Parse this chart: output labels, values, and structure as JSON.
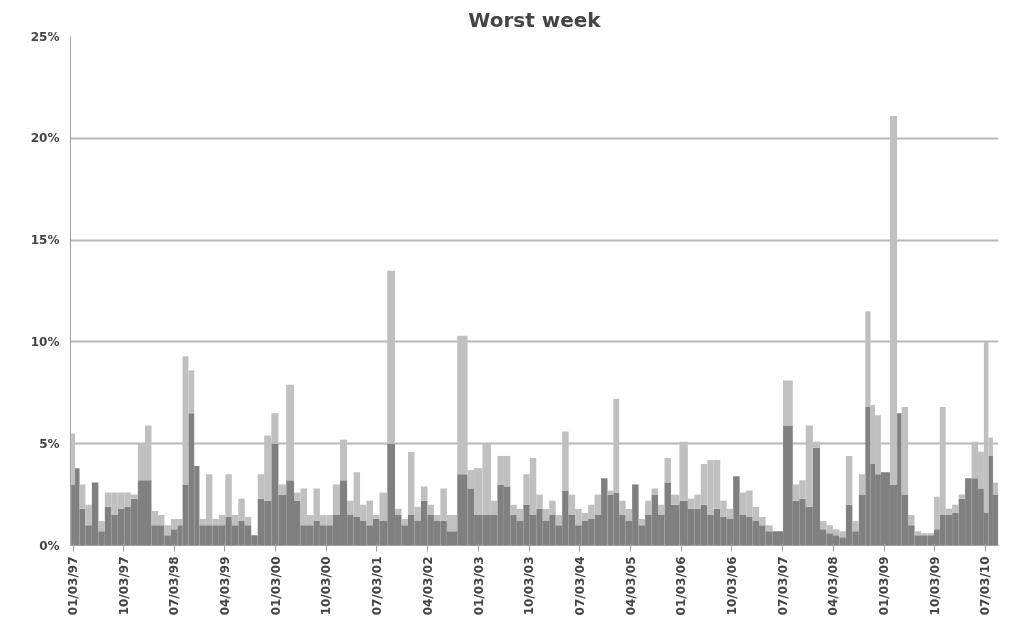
{
  "chart_data": {
    "type": "bar",
    "title": "Worst week",
    "x": [
      "1997-01-03",
      "1997-01-24",
      "1997-02-21",
      "1997-03-28",
      "1997-05-02",
      "1997-06-06",
      "1997-07-11",
      "1997-08-15",
      "1997-09-19",
      "1997-10-24",
      "1997-11-28",
      "1998-01-09",
      "1998-02-13",
      "1998-03-20",
      "1998-04-24",
      "1998-05-29",
      "1998-07-03",
      "1998-08-07",
      "1998-08-28",
      "1998-10-09",
      "1998-10-30",
      "1998-12-04",
      "1999-01-08",
      "1999-02-12",
      "1999-03-19",
      "1999-04-23",
      "1999-05-28",
      "1999-07-02",
      "1999-08-06",
      "1999-09-10",
      "1999-10-15",
      "1999-11-19",
      "1999-12-31",
      "2000-02-04",
      "2000-03-24",
      "2000-04-28",
      "2000-06-02",
      "2000-07-07",
      "2000-08-11",
      "2000-09-15",
      "2000-10-20",
      "2000-11-24",
      "2001-01-05",
      "2001-02-09",
      "2001-03-16",
      "2001-04-20",
      "2001-05-25",
      "2001-06-29",
      "2001-08-03",
      "2001-09-21",
      "2001-10-26",
      "2001-11-30",
      "2002-01-04",
      "2002-02-08",
      "2002-03-15",
      "2002-04-19",
      "2002-05-24",
      "2002-06-28",
      "2002-08-02",
      "2002-10-18",
      "2002-11-22",
      "2002-12-27",
      "2003-02-21",
      "2003-03-28",
      "2003-05-02",
      "2003-06-06",
      "2003-07-11",
      "2003-08-15",
      "2003-09-19",
      "2003-10-24",
      "2003-11-28",
      "2004-01-02",
      "2004-02-06",
      "2004-03-12",
      "2004-04-16",
      "2004-05-21",
      "2004-06-25",
      "2004-07-30",
      "2004-09-03",
      "2004-10-08",
      "2004-11-12",
      "2004-12-17",
      "2005-01-14",
      "2005-02-18",
      "2005-03-25",
      "2005-04-29",
      "2005-06-03",
      "2005-07-08",
      "2005-08-12",
      "2005-09-16",
      "2005-10-21",
      "2005-11-25",
      "2006-01-20",
      "2006-02-24",
      "2006-03-31",
      "2006-05-05",
      "2006-06-09",
      "2006-07-14",
      "2006-08-18",
      "2006-09-22",
      "2006-10-27",
      "2006-12-01",
      "2007-01-05",
      "2007-02-09",
      "2007-03-16",
      "2007-04-20",
      "2007-06-01",
      "2007-08-10",
      "2007-09-14",
      "2007-10-19",
      "2007-11-23",
      "2008-01-04",
      "2008-02-08",
      "2008-03-14",
      "2008-04-18",
      "2008-05-23",
      "2008-06-27",
      "2008-08-01",
      "2008-09-05",
      "2008-10-10",
      "2008-10-31",
      "2008-11-28",
      "2009-01-02",
      "2009-03-06",
      "2009-03-20",
      "2009-04-24",
      "2009-05-29",
      "2009-07-03",
      "2009-08-07",
      "2009-09-11",
      "2009-10-16",
      "2009-11-13",
      "2009-12-18",
      "2010-01-22",
      "2010-02-26",
      "2010-04-02",
      "2010-05-07",
      "2010-06-11",
      "2010-07-09",
      "2010-07-30",
      "2010-08-27"
    ],
    "series": [
      {
        "color": "#808080",
        "values": [
          3.0,
          3.8,
          1.8,
          1.0,
          3.1,
          0.7,
          1.9,
          1.5,
          1.8,
          1.9,
          2.3,
          3.2,
          3.2,
          1.0,
          1.0,
          0.5,
          0.8,
          1.0,
          3.0,
          6.5,
          3.9,
          1.0,
          1.0,
          1.0,
          1.0,
          1.4,
          1.0,
          1.2,
          1.0,
          0.5,
          2.3,
          2.2,
          5.0,
          2.5,
          3.2,
          2.2,
          1.0,
          1.0,
          1.2,
          1.0,
          1.0,
          1.5,
          3.2,
          1.5,
          1.4,
          1.2,
          1.0,
          1.3,
          1.2,
          5.0,
          1.5,
          1.0,
          1.5,
          1.2,
          2.2,
          1.5,
          1.2,
          1.2,
          0.7,
          3.5,
          2.8,
          1.5,
          1.5,
          1.5,
          3.0,
          2.9,
          1.5,
          1.2,
          2.0,
          1.5,
          1.8,
          1.2,
          1.5,
          1.0,
          2.7,
          1.5,
          1.0,
          1.2,
          1.3,
          1.5,
          3.3,
          2.5,
          2.6,
          1.5,
          1.2,
          3.0,
          1.0,
          1.5,
          2.5,
          1.5,
          3.1,
          2.0,
          2.2,
          1.8,
          1.8,
          2.0,
          1.5,
          1.8,
          1.4,
          1.3,
          3.4,
          1.5,
          1.4,
          1.2,
          1.0,
          0.7,
          0.7,
          5.9,
          2.2,
          2.3,
          1.9,
          4.8,
          0.8,
          0.6,
          0.5,
          0.4,
          2.0,
          0.7,
          2.5,
          6.8,
          4.0,
          3.5,
          3.6,
          3.0,
          6.5,
          2.5,
          1.0,
          0.5,
          0.5,
          0.5,
          0.8,
          1.5,
          1.5,
          1.6,
          2.3,
          3.3,
          3.3,
          2.8,
          1.6,
          4.4,
          2.5
        ]
      },
      {
        "color": "#c0c0c0",
        "values": [
          2.5,
          null,
          1.2,
          1.0,
          null,
          0.5,
          0.7,
          1.1,
          0.8,
          0.7,
          0.2,
          1.8,
          2.7,
          0.7,
          0.5,
          0.5,
          0.5,
          0.3,
          6.3,
          2.1,
          null,
          0.3,
          2.5,
          0.3,
          0.5,
          2.1,
          0.5,
          1.1,
          0.4,
          null,
          1.2,
          3.2,
          1.5,
          0.5,
          4.7,
          0.4,
          1.8,
          0.5,
          1.6,
          0.5,
          0.5,
          1.5,
          2.0,
          0.7,
          2.2,
          0.8,
          1.2,
          0.2,
          1.4,
          8.5,
          0.3,
          0.3,
          3.1,
          0.7,
          0.7,
          0.5,
          0.3,
          1.6,
          0.8,
          6.8,
          0.9,
          2.3,
          3.5,
          0.7,
          1.4,
          1.5,
          0.5,
          0.6,
          1.5,
          2.8,
          0.7,
          0.6,
          0.7,
          0.5,
          2.9,
          1.0,
          0.8,
          0.4,
          0.7,
          1.0,
          null,
          0.2,
          4.6,
          0.7,
          0.6,
          null,
          0.3,
          0.7,
          0.3,
          0.5,
          1.2,
          0.5,
          2.9,
          0.5,
          0.7,
          2.0,
          2.7,
          2.4,
          0.8,
          0.5,
          null,
          1.1,
          1.3,
          0.7,
          0.4,
          0.3,
          null,
          2.2,
          0.8,
          0.9,
          4.0,
          0.3,
          0.4,
          0.4,
          0.3,
          0.3,
          2.4,
          0.5,
          1.0,
          4.7,
          2.9,
          2.9,
          null,
          18.1,
          null,
          4.3,
          0.5,
          0.2,
          0.1,
          0.1,
          1.6,
          5.3,
          0.3,
          0.4,
          0.2,
          null,
          1.8,
          1.8,
          8.4,
          0.9,
          0.6
        ]
      }
    ],
    "stacked": true,
    "xlim": [
      "1996-12-20",
      "2010-09-12"
    ],
    "xticks": [
      {
        "value": "1997-01-03",
        "label": "01/03/97"
      },
      {
        "value": "1997-10-03",
        "label": "10/03/97"
      },
      {
        "value": "1998-07-03",
        "label": "07/03/98"
      },
      {
        "value": "1999-04-03",
        "label": "04/03/99"
      },
      {
        "value": "2000-01-03",
        "label": "01/03/00"
      },
      {
        "value": "2000-10-03",
        "label": "10/03/00"
      },
      {
        "value": "2001-07-03",
        "label": "07/03/01"
      },
      {
        "value": "2002-04-03",
        "label": "04/03/02"
      },
      {
        "value": "2003-01-03",
        "label": "01/03/03"
      },
      {
        "value": "2003-10-03",
        "label": "10/03/03"
      },
      {
        "value": "2004-07-03",
        "label": "07/03/04"
      },
      {
        "value": "2005-04-03",
        "label": "04/03/05"
      },
      {
        "value": "2006-01-03",
        "label": "01/03/06"
      },
      {
        "value": "2006-10-03",
        "label": "10/03/06"
      },
      {
        "value": "2007-07-03",
        "label": "07/03/07"
      },
      {
        "value": "2008-04-03",
        "label": "04/03/08"
      },
      {
        "value": "2009-01-03",
        "label": "01/03/09"
      },
      {
        "value": "2009-10-03",
        "label": "10/03/09"
      },
      {
        "value": "2010-07-03",
        "label": "07/03/10"
      }
    ],
    "ylim": [
      0,
      25
    ],
    "yticks": [
      {
        "value": 0,
        "label": "0%"
      },
      {
        "value": 5,
        "label": "5%"
      },
      {
        "value": 10,
        "label": "10%"
      },
      {
        "value": 15,
        "label": "15%"
      },
      {
        "value": 20,
        "label": "20%"
      },
      {
        "value": 25,
        "label": "25%"
      }
    ],
    "grid": "y"
  }
}
